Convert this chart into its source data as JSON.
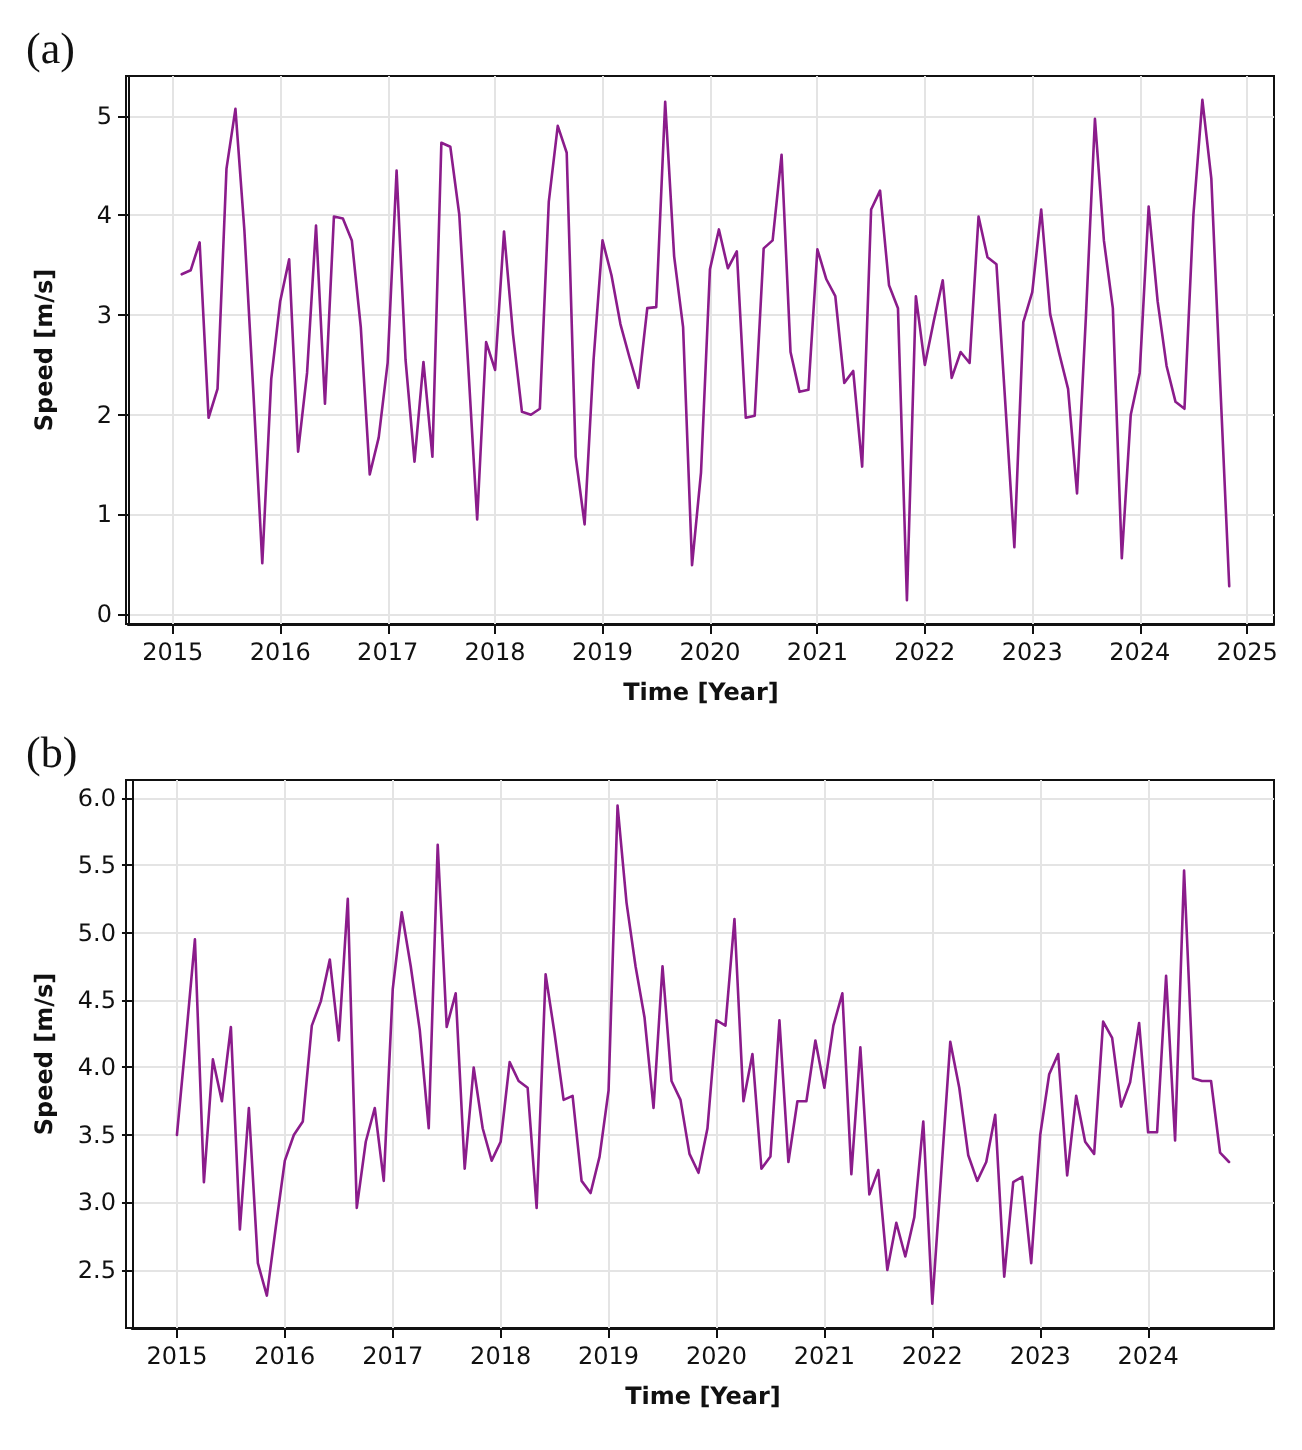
{
  "chart_data": [
    {
      "type": "line",
      "title": "(a)",
      "xlabel": "Time [Year]",
      "ylabel": "Speed [m/s]",
      "grid": true,
      "marker": "none",
      "line_style": "solid",
      "xlim": [
        "2014-08",
        "2025-04"
      ],
      "xticks": [
        "2015",
        "2016",
        "2017",
        "2018",
        "2019",
        "2020",
        "2021",
        "2022",
        "2023",
        "2024",
        "2025"
      ],
      "ylim": [
        -0.1,
        5.4
      ],
      "yticks": [
        0,
        1,
        2,
        3,
        4,
        5
      ],
      "series": [
        {
          "color": "#8b1c8b",
          "x": [
            "2015-02",
            "2015-03",
            "2015-04",
            "2015-05",
            "2015-06",
            "2015-07",
            "2015-08",
            "2015-09",
            "2015-10",
            "2015-11",
            "2015-12",
            "2016-01",
            "2016-02",
            "2016-03",
            "2016-04",
            "2016-05",
            "2016-06",
            "2016-07",
            "2016-08",
            "2016-09",
            "2016-10",
            "2016-11",
            "2016-12",
            "2017-01",
            "2017-02",
            "2017-03",
            "2017-04",
            "2017-05",
            "2017-06",
            "2017-07",
            "2017-08",
            "2017-09",
            "2017-10",
            "2017-11",
            "2017-12",
            "2018-01",
            "2018-02",
            "2018-03",
            "2018-04",
            "2018-05",
            "2018-06",
            "2018-07",
            "2018-08",
            "2018-09",
            "2018-10",
            "2018-11",
            "2018-12",
            "2019-01",
            "2019-02",
            "2019-03",
            "2019-04",
            "2019-05",
            "2019-06",
            "2019-07",
            "2019-08",
            "2019-09",
            "2019-10",
            "2019-11",
            "2019-12",
            "2020-01",
            "2020-02",
            "2020-03",
            "2020-04",
            "2020-05",
            "2020-06",
            "2020-07",
            "2020-08",
            "2020-09",
            "2020-10",
            "2020-11",
            "2020-12",
            "2021-01",
            "2021-02",
            "2021-03",
            "2021-04",
            "2021-05",
            "2021-06",
            "2021-07",
            "2021-08",
            "2021-09",
            "2021-10",
            "2021-11",
            "2021-12",
            "2022-01",
            "2022-02",
            "2022-03",
            "2022-04",
            "2022-05",
            "2022-06",
            "2022-07",
            "2022-08",
            "2022-09",
            "2022-10",
            "2022-11",
            "2022-12",
            "2023-01",
            "2023-02",
            "2023-03",
            "2023-04",
            "2023-05",
            "2023-06",
            "2023-07",
            "2023-08",
            "2023-09",
            "2023-10",
            "2023-11",
            "2023-12",
            "2024-01",
            "2024-02",
            "2024-03",
            "2024-04",
            "2024-05",
            "2024-06",
            "2024-07",
            "2024-08",
            "2024-09",
            "2024-10",
            "2024-11"
          ],
          "values": [
            3.41,
            3.45,
            3.73,
            1.97,
            2.26,
            4.47,
            5.07,
            3.85,
            2.23,
            0.51,
            2.36,
            3.14,
            3.56,
            1.63,
            2.42,
            3.9,
            2.11,
            3.99,
            3.97,
            3.75,
            2.88,
            1.4,
            1.77,
            2.52,
            4.45,
            2.55,
            1.53,
            2.53,
            1.58,
            4.73,
            4.69,
            4.01,
            2.49,
            0.95,
            2.73,
            2.45,
            3.84,
            2.81,
            2.03,
            2.0,
            2.06,
            4.14,
            4.9,
            4.63,
            1.58,
            0.9,
            2.55,
            3.75,
            3.4,
            2.91,
            2.58,
            2.27,
            3.07,
            3.08,
            5.14,
            3.59,
            2.88,
            0.49,
            1.42,
            3.46,
            3.86,
            3.47,
            3.64,
            1.97,
            1.99,
            3.67,
            3.75,
            4.61,
            2.63,
            2.23,
            2.25,
            3.66,
            3.36,
            3.19,
            2.32,
            2.44,
            1.48,
            4.06,
            4.25,
            3.3,
            3.07,
            0.14,
            3.19,
            2.5,
            2.94,
            3.35,
            2.37,
            2.63,
            2.52,
            3.99,
            3.58,
            3.51,
            2.1,
            0.67,
            2.93,
            3.23,
            4.06,
            3.01,
            2.62,
            2.26,
            1.21,
            3.0,
            4.97,
            3.75,
            3.07,
            0.56,
            2.0,
            2.42,
            4.09,
            3.14,
            2.49,
            2.13,
            2.06,
            4.01,
            5.16,
            4.37,
            2.3,
            0.28
          ]
        }
      ]
    },
    {
      "type": "line",
      "title": "(b)",
      "xlabel": "Time [Year]",
      "ylabel": "Speed [m/s]",
      "grid": true,
      "marker": "none",
      "line_style": "solid",
      "xlim": [
        "2014-08",
        "2025-03"
      ],
      "xticks": [
        "2015",
        "2016",
        "2017",
        "2018",
        "2019",
        "2020",
        "2021",
        "2022",
        "2023",
        "2024"
      ],
      "ylim": [
        2.07,
        6.13
      ],
      "yticks": [
        {
          "value": 2.5,
          "label": "2.5"
        },
        {
          "value": 3,
          "label": "3.0"
        },
        {
          "value": 3.5,
          "label": "3.5"
        },
        {
          "value": 4,
          "label": "4.0"
        },
        {
          "value": 4.5,
          "label": "4.5"
        },
        {
          "value": 5,
          "label": "5.0"
        },
        {
          "value": 5.5,
          "label": "5.5"
        },
        {
          "value": 6,
          "label": "6.0"
        }
      ],
      "series": [
        {
          "color": "#8b1c8b",
          "x": [
            "2015-01",
            "2015-02",
            "2015-03",
            "2015-04",
            "2015-05",
            "2015-06",
            "2015-07",
            "2015-08",
            "2015-09",
            "2015-10",
            "2015-11",
            "2015-12",
            "2016-01",
            "2016-02",
            "2016-03",
            "2016-04",
            "2016-05",
            "2016-06",
            "2016-07",
            "2016-08",
            "2016-09",
            "2016-10",
            "2016-11",
            "2016-12",
            "2017-01",
            "2017-02",
            "2017-03",
            "2017-04",
            "2017-05",
            "2017-06",
            "2017-07",
            "2017-08",
            "2017-09",
            "2017-10",
            "2017-11",
            "2017-12",
            "2018-01",
            "2018-02",
            "2018-03",
            "2018-04",
            "2018-05",
            "2018-06",
            "2018-07",
            "2018-08",
            "2018-09",
            "2018-10",
            "2018-11",
            "2018-12",
            "2019-01",
            "2019-02",
            "2019-03",
            "2019-04",
            "2019-05",
            "2019-06",
            "2019-07",
            "2019-08",
            "2019-09",
            "2019-10",
            "2019-11",
            "2019-12",
            "2020-01",
            "2020-02",
            "2020-03",
            "2020-04",
            "2020-05",
            "2020-06",
            "2020-07",
            "2020-08",
            "2020-09",
            "2020-10",
            "2020-11",
            "2020-12",
            "2021-01",
            "2021-02",
            "2021-03",
            "2021-04",
            "2021-05",
            "2021-06",
            "2021-07",
            "2021-08",
            "2021-09",
            "2021-10",
            "2021-11",
            "2021-12",
            "2022-01",
            "2022-02",
            "2022-03",
            "2022-04",
            "2022-05",
            "2022-06",
            "2022-07",
            "2022-08",
            "2022-09",
            "2022-10",
            "2022-11",
            "2022-12",
            "2023-01",
            "2023-02",
            "2023-03",
            "2023-04",
            "2023-05",
            "2023-06",
            "2023-07",
            "2023-08",
            "2023-09",
            "2023-10",
            "2023-11",
            "2023-12",
            "2024-01",
            "2024-02",
            "2024-03",
            "2024-04",
            "2024-05",
            "2024-06",
            "2024-07",
            "2024-08",
            "2024-09",
            "2024-10"
          ],
          "values": [
            3.5,
            4.21,
            4.95,
            3.15,
            4.06,
            3.75,
            4.3,
            2.8,
            3.7,
            2.55,
            2.31,
            2.82,
            3.31,
            3.5,
            3.6,
            4.31,
            4.49,
            4.8,
            4.2,
            5.25,
            2.96,
            3.45,
            3.7,
            3.16,
            4.58,
            5.15,
            4.75,
            4.28,
            3.55,
            5.65,
            4.3,
            4.55,
            3.25,
            4.0,
            3.55,
            3.31,
            3.45,
            4.04,
            3.9,
            3.85,
            2.96,
            4.69,
            4.25,
            3.76,
            3.79,
            3.16,
            3.07,
            3.34,
            3.83,
            5.94,
            5.22,
            4.75,
            4.37,
            3.7,
            4.75,
            3.9,
            3.76,
            3.36,
            3.22,
            3.55,
            4.35,
            4.31,
            5.1,
            3.75,
            4.1,
            3.25,
            3.34,
            4.35,
            3.3,
            3.75,
            3.75,
            4.2,
            3.85,
            4.31,
            4.55,
            3.21,
            4.15,
            3.06,
            3.24,
            2.5,
            2.85,
            2.6,
            2.89,
            3.6,
            2.25,
            3.22,
            4.19,
            3.85,
            3.35,
            3.16,
            3.3,
            3.65,
            2.45,
            3.15,
            3.19,
            2.55,
            3.5,
            3.95,
            4.1,
            3.2,
            3.79,
            3.45,
            3.36,
            4.34,
            4.22,
            3.71,
            3.89,
            4.33,
            3.52,
            3.52,
            4.68,
            3.46,
            5.46,
            3.92,
            3.9,
            3.9,
            3.37,
            3.3
          ]
        }
      ]
    }
  ]
}
